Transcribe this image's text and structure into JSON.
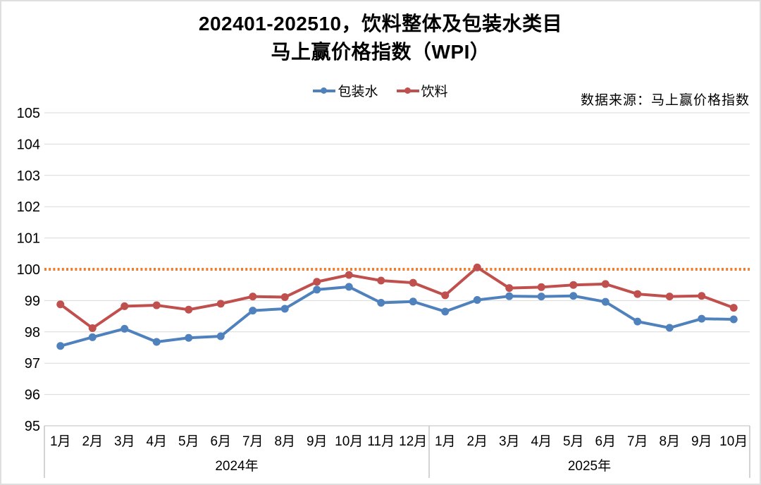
{
  "page": {
    "background": "#FFFFFF",
    "border_color": "#DFDFDF"
  },
  "title": {
    "line1": "202401-202510，饮料整体及包装水类目",
    "line2": "马上赢价格指数（WPI）"
  },
  "source_note": "数据来源：马上赢价格指数",
  "legend": {
    "items": [
      {
        "label": "包装水",
        "color": "#4F81BD"
      },
      {
        "label": "饮料",
        "color": "#C0504D"
      }
    ]
  },
  "chart_data": {
    "type": "line",
    "title": "202401-202510，饮料整体及包装水类目 马上赢价格指数（WPI）",
    "ylabel": "",
    "xlabel": "",
    "ylim": [
      95,
      105
    ],
    "yticks": [
      95,
      96,
      97,
      98,
      99,
      100,
      101,
      102,
      103,
      104,
      105
    ],
    "grid": true,
    "gridline_color": "#D9D9D9",
    "axis_line_color": "#BFBFBF",
    "box_line_color": "#C6C6C6",
    "reference_line": {
      "value": 100,
      "color": "#ED7D31",
      "style": "dotted"
    },
    "legend_position": "top",
    "x_axis": {
      "groups": [
        {
          "label": "2024年",
          "months": [
            "1月",
            "2月",
            "3月",
            "4月",
            "5月",
            "6月",
            "7月",
            "8月",
            "9月",
            "10月",
            "11月",
            "12月"
          ]
        },
        {
          "label": "2025年",
          "months": [
            "1月",
            "2月",
            "3月",
            "4月",
            "5月",
            "6月",
            "7月",
            "8月",
            "9月",
            "10月"
          ]
        }
      ]
    },
    "categories": [
      "2024-1月",
      "2024-2月",
      "2024-3月",
      "2024-4月",
      "2024-5月",
      "2024-6月",
      "2024-7月",
      "2024-8月",
      "2024-9月",
      "2024-10月",
      "2024-11月",
      "2024-12月",
      "2025-1月",
      "2025-2月",
      "2025-3月",
      "2025-4月",
      "2025-5月",
      "2025-6月",
      "2025-7月",
      "2025-8月",
      "2025-9月",
      "2025-10月"
    ],
    "series": [
      {
        "name": "包装水",
        "color": "#4F81BD",
        "values": [
          97.55,
          97.83,
          98.1,
          97.68,
          97.81,
          97.86,
          98.68,
          98.74,
          99.35,
          99.44,
          98.93,
          98.97,
          98.65,
          99.02,
          99.14,
          99.13,
          99.15,
          98.96,
          98.33,
          98.13,
          98.42,
          98.4
        ]
      },
      {
        "name": "饮料",
        "color": "#C0504D",
        "values": [
          98.88,
          98.12,
          98.82,
          98.85,
          98.71,
          98.9,
          99.13,
          99.11,
          99.6,
          99.82,
          99.64,
          99.57,
          99.17,
          100.06,
          99.4,
          99.43,
          99.5,
          99.53,
          99.21,
          99.13,
          99.15,
          98.77
        ]
      }
    ]
  }
}
